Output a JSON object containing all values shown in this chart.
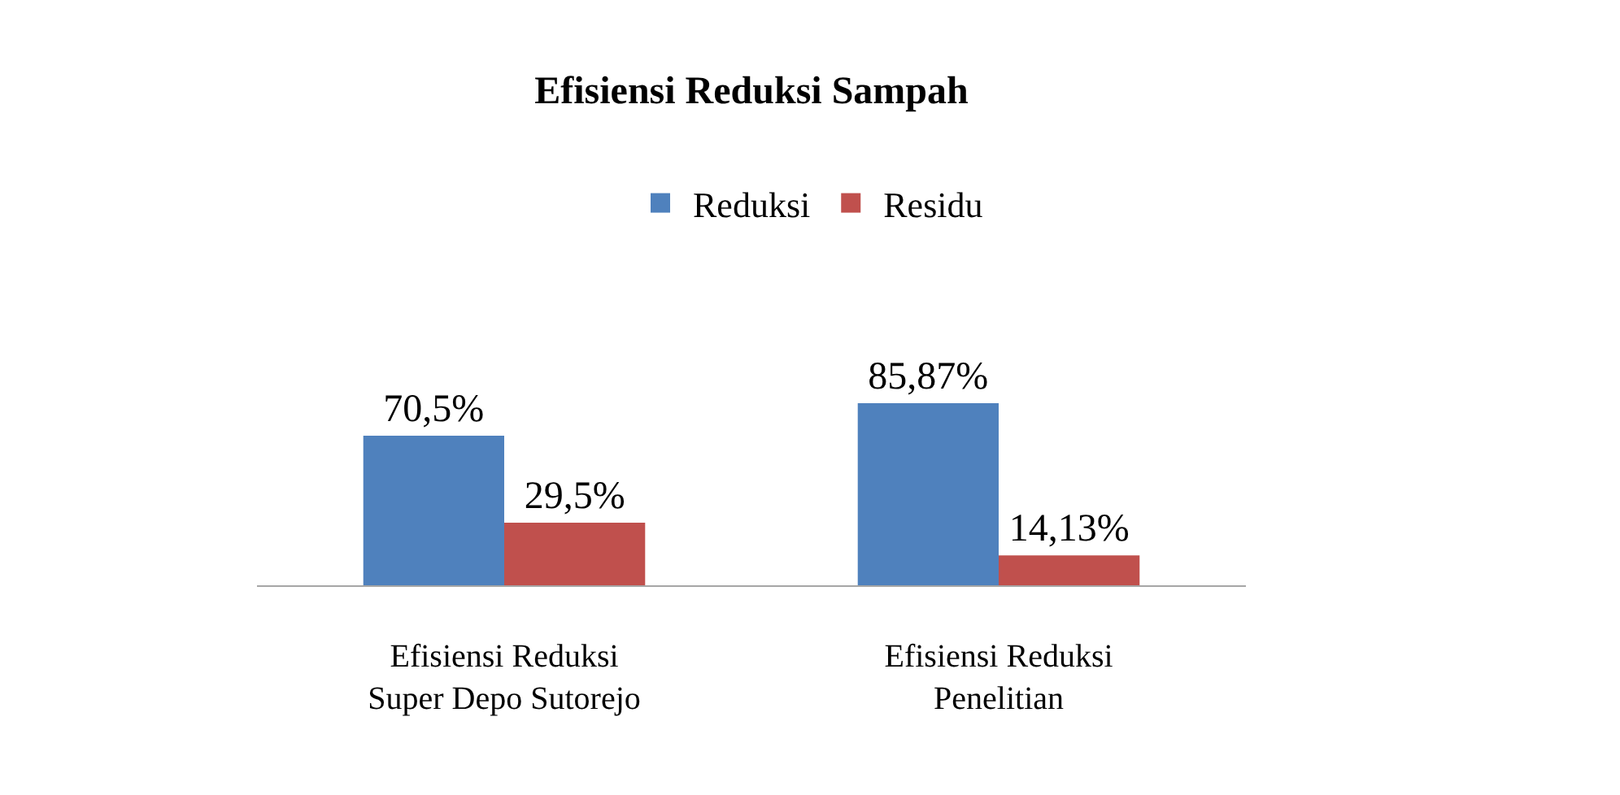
{
  "chart_data": {
    "type": "bar",
    "title": "Efisiensi Reduksi Sampah",
    "categories": [
      "Efisiensi Reduksi\nSuper Depo Sutorejo",
      "Efisiensi Reduksi\nPenelitian"
    ],
    "series": [
      {
        "name": "Reduksi",
        "color": "#4f81bd",
        "values": [
          70.5,
          85.87
        ],
        "value_labels": [
          "70,5%",
          "85,87%"
        ]
      },
      {
        "name": "Residu",
        "color": "#c0504d",
        "values": [
          29.5,
          14.13
        ],
        "value_labels": [
          "29,5%",
          "14,13%"
        ]
      }
    ],
    "legend": "top"
  }
}
